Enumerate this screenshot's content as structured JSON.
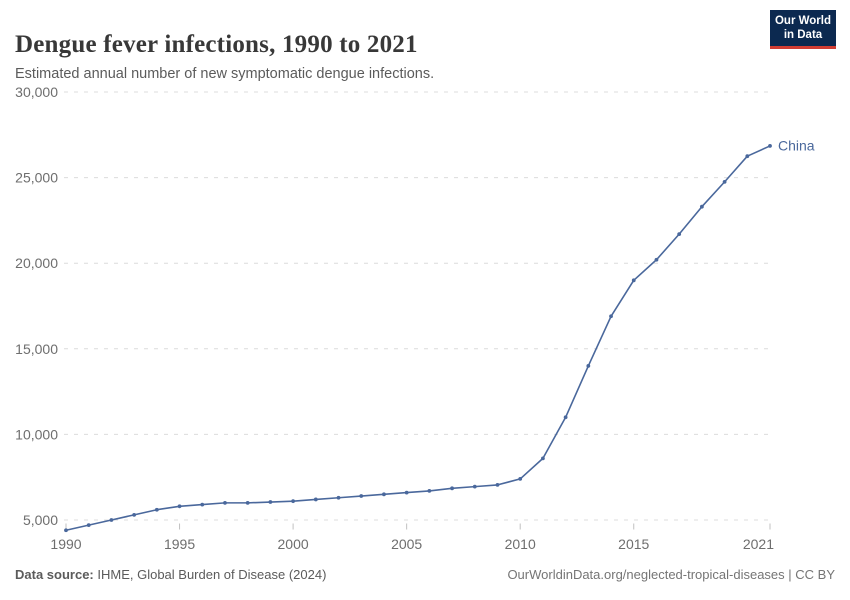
{
  "header": {
    "title": "Dengue fever infections, 1990 to 2021",
    "subtitle": "Estimated annual number of new symptomatic dengue infections."
  },
  "logo": {
    "line1": "Our World",
    "line2": "in Data",
    "bg_color": "#0c2950",
    "bar_color": "#d23d33"
  },
  "footer": {
    "source_label": "Data source:",
    "source_value": " IHME, Global Burden of Disease (2024)",
    "credit": "OurWorldinData.org/neglected-tropical-diseases | CC BY"
  },
  "chart_data": {
    "type": "line",
    "title": "Dengue fever infections, 1990 to 2021",
    "subtitle": "Estimated annual number of new symptomatic dengue infections.",
    "x": [
      1990,
      1991,
      1992,
      1993,
      1994,
      1995,
      1996,
      1997,
      1998,
      1999,
      2000,
      2001,
      2002,
      2003,
      2004,
      2005,
      2006,
      2007,
      2008,
      2009,
      2010,
      2011,
      2012,
      2013,
      2014,
      2015,
      2016,
      2017,
      2018,
      2019,
      2020,
      2021
    ],
    "series": [
      {
        "name": "China",
        "color": "#4a689c",
        "values": [
          4400,
          4700,
          5000,
          5300,
          5600,
          5800,
          5900,
          6000,
          6000,
          6050,
          6100,
          6200,
          6300,
          6400,
          6500,
          6600,
          6700,
          6850,
          6950,
          7050,
          7400,
          8600,
          11000,
          14000,
          16900,
          19000,
          20200,
          21700,
          23300,
          24750,
          26250,
          26850
        ]
      }
    ],
    "xticks": [
      1990,
      1995,
      2000,
      2005,
      2010,
      2015,
      2021
    ],
    "xtick_labels": [
      "1990",
      "1995",
      "2000",
      "2005",
      "2010",
      "2015",
      "2021"
    ],
    "yticks": [
      5000,
      10000,
      15000,
      20000,
      25000,
      30000
    ],
    "ytick_labels": [
      "5,000",
      "10,000",
      "15,000",
      "20,000",
      "25,000",
      "30,000"
    ],
    "xlim": [
      1990,
      2021
    ],
    "ylim": [
      4400,
      30000
    ],
    "grid": "horizontal-dashed",
    "gridline_color": "#dcdcdc",
    "tick_color": "#c0c0c0",
    "legend": "series-label-at-line-end"
  }
}
